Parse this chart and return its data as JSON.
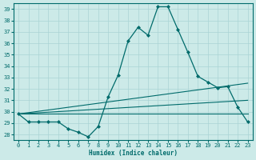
{
  "xlabel": "Humidex (Indice chaleur)",
  "background_color": "#cceae8",
  "line_color": "#006b6b",
  "grid_color": "#aad4d4",
  "xlim": [
    -0.5,
    23.5
  ],
  "ylim": [
    27.5,
    39.5
  ],
  "yticks": [
    28,
    29,
    30,
    31,
    32,
    33,
    34,
    35,
    36,
    37,
    38,
    39
  ],
  "xticks": [
    0,
    1,
    2,
    3,
    4,
    5,
    6,
    7,
    8,
    9,
    10,
    11,
    12,
    13,
    14,
    15,
    16,
    17,
    18,
    19,
    20,
    21,
    22,
    23
  ],
  "main_x": [
    0,
    1,
    2,
    3,
    4,
    5,
    6,
    7,
    8,
    9,
    10,
    11,
    12,
    13,
    14,
    15,
    16,
    17,
    18,
    19,
    20,
    21,
    22,
    23
  ],
  "main_y": [
    29.8,
    29.1,
    29.1,
    29.1,
    29.1,
    28.5,
    28.2,
    27.8,
    28.7,
    31.3,
    33.2,
    36.2,
    37.4,
    36.7,
    39.2,
    39.2,
    37.2,
    35.2,
    33.1,
    32.6,
    32.1,
    32.2,
    30.4,
    29.1
  ],
  "ref_lines": [
    {
      "x": [
        0,
        23
      ],
      "y": [
        29.8,
        32.5
      ]
    },
    {
      "x": [
        0,
        23
      ],
      "y": [
        29.8,
        31.0
      ]
    },
    {
      "x": [
        0,
        23
      ],
      "y": [
        29.8,
        29.8
      ]
    }
  ]
}
